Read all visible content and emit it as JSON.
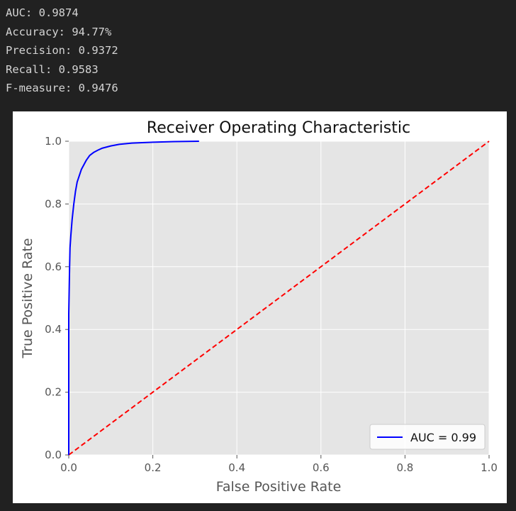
{
  "metrics": [
    {
      "label": "AUC:",
      "value": "0.9874"
    },
    {
      "label": "Accuracy:",
      "value": "94.77%"
    },
    {
      "label": "Precision:",
      "value": "0.9372"
    },
    {
      "label": "Recall:",
      "value": "0.9583"
    },
    {
      "label": "F-measure:",
      "value": "0.9476"
    }
  ],
  "chart_data": {
    "type": "line",
    "title": "Receiver Operating Characteristic",
    "xlabel": "False Positive Rate",
    "ylabel": "True Positive Rate",
    "xlim": [
      0.0,
      1.0
    ],
    "ylim": [
      0.0,
      1.0
    ],
    "xticks": [
      "0.0",
      "0.2",
      "0.4",
      "0.6",
      "0.8",
      "1.0"
    ],
    "yticks": [
      "0.0",
      "0.2",
      "0.4",
      "0.6",
      "0.8",
      "1.0"
    ],
    "grid": true,
    "legend_position": "lower-right",
    "series": [
      {
        "name": "AUC = 0.99",
        "color": "#0000ff",
        "style": "solid",
        "x": [
          0.0,
          0.0,
          0.002,
          0.003,
          0.005,
          0.008,
          0.012,
          0.016,
          0.02,
          0.025,
          0.03,
          0.036,
          0.042,
          0.05,
          0.06,
          0.07,
          0.08,
          0.1,
          0.12,
          0.15,
          0.2,
          0.25,
          0.31
        ],
        "y": [
          0.0,
          0.45,
          0.6,
          0.66,
          0.7,
          0.75,
          0.8,
          0.84,
          0.87,
          0.89,
          0.91,
          0.925,
          0.94,
          0.955,
          0.965,
          0.972,
          0.978,
          0.985,
          0.99,
          0.994,
          0.997,
          0.999,
          1.0
        ]
      },
      {
        "name": "",
        "color": "#ff0000",
        "style": "dashed",
        "x": [
          0.0,
          1.0
        ],
        "y": [
          0.0,
          1.0
        ]
      }
    ]
  }
}
